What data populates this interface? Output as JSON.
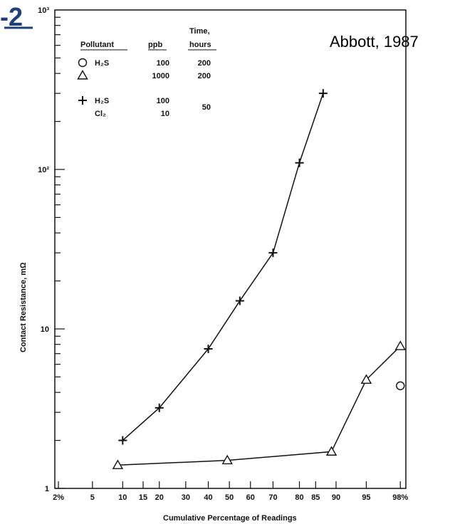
{
  "figure_label": "-2",
  "citation": "Abbott, 1987",
  "legend": {
    "headers": {
      "pollutant": "Pollutant",
      "ppb": "ppb",
      "time_line1": "Time,",
      "time_line2": "hours"
    },
    "rows": [
      {
        "marker": "circle",
        "pollutant": "H₂S",
        "ppb": "100",
        "time": "200"
      },
      {
        "marker": "triangle",
        "pollutant": "",
        "ppb": "1000",
        "time": "200"
      },
      {
        "marker": "plus",
        "pollutant": "H₂S",
        "ppb": "100",
        "time": "50"
      },
      {
        "marker": "",
        "pollutant": "Cl₂",
        "ppb": "10",
        "time": ""
      }
    ]
  },
  "chart_data": {
    "type": "line",
    "title": "",
    "xlabel": "Cumulative Percentage of Readings",
    "ylabel": "Contact Resistance, mΩ",
    "x_scale": "normal-probability",
    "y_scale": "log",
    "xlim": [
      1.8,
      98.3
    ],
    "ylim": [
      1,
      1000
    ],
    "x_tick_labels": [
      "2%",
      "5",
      "10",
      "15",
      "20",
      "30",
      "40",
      "50",
      "60",
      "70",
      "80",
      "85",
      "90",
      "95",
      "98%"
    ],
    "x_tick_values": [
      2,
      5,
      10,
      15,
      20,
      30,
      40,
      50,
      60,
      70,
      80,
      85,
      90,
      95,
      98
    ],
    "y_tick_labels": [
      {
        "label": "1",
        "value": 1
      },
      {
        "label": "10",
        "value": 10
      },
      {
        "label": "10²",
        "value": 100
      },
      {
        "label": "10³",
        "value": 1000
      }
    ],
    "grid": false,
    "series": [
      {
        "marker": "plus",
        "x": [
          10,
          20,
          40,
          55,
          70,
          80,
          87
        ],
        "y": [
          2.0,
          3.2,
          7.5,
          15,
          30,
          110,
          300
        ]
      },
      {
        "marker": "triangle",
        "x": [
          9,
          49,
          89,
          95,
          98
        ],
        "y": [
          1.4,
          1.5,
          1.7,
          4.8,
          7.8
        ]
      },
      {
        "marker": "circle",
        "x": [
          98
        ],
        "y": [
          4.4
        ]
      }
    ]
  }
}
